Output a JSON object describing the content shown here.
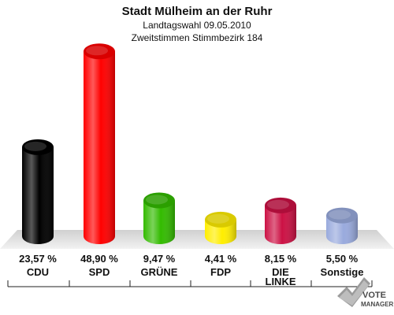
{
  "chart_data": {
    "type": "bar",
    "title": "Stadt Mülheim an der Ruhr",
    "subtitle_1": "Landtagswahl 09.05.2010",
    "subtitle_2": "Zweitstimmen Stimmbezirk 184",
    "categories": [
      "CDU",
      "SPD",
      "GRÜNE",
      "FDP",
      "DIE LINKE",
      "Sonstige"
    ],
    "category_lines": [
      [
        "CDU"
      ],
      [
        "SPD"
      ],
      [
        "GRÜNE"
      ],
      [
        "FDP"
      ],
      [
        "DIE",
        "LINKE"
      ],
      [
        "Sonstige"
      ]
    ],
    "values": [
      23.57,
      48.9,
      9.47,
      4.41,
      8.15,
      5.5
    ],
    "value_labels": [
      "23,57 %",
      "48,90 %",
      "9,47 %",
      "4,41 %",
      "8,15 %",
      "5,50 %"
    ],
    "colors": [
      "#000000",
      "#ff0000",
      "#33bb00",
      "#ffee00",
      "#cc1144",
      "#99aadd"
    ],
    "ylim": [
      0,
      50
    ],
    "grid": false,
    "legend": "none"
  },
  "branding": {
    "text_1": "VOTE",
    "text_2": "MANAGER"
  }
}
